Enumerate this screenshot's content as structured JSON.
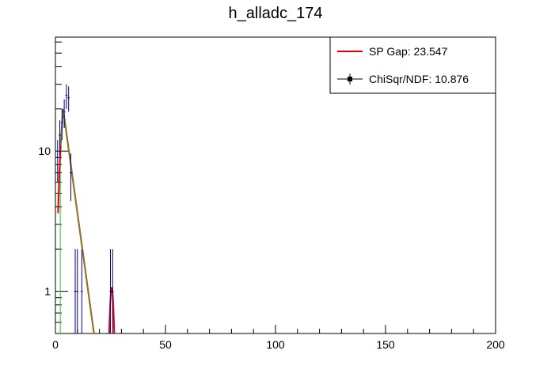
{
  "chart_data": {
    "type": "scatter",
    "title": "h_alladc_174",
    "xlabel": "",
    "ylabel": "",
    "xlim": [
      0,
      200
    ],
    "ylim": [
      0.5,
      65
    ],
    "yscale": "log",
    "x_ticks": [
      0,
      50,
      100,
      150,
      200
    ],
    "y_ticks": [
      1,
      10
    ],
    "grid": false,
    "legend_position": "top-right",
    "legend": [
      {
        "label": "SP Gap: 23.547",
        "style": "line",
        "color": "#e00000"
      },
      {
        "label": "ChiSqr/NDF: 10.876",
        "style": "marker-line",
        "color": "#000000"
      }
    ],
    "histogram": {
      "name": "data",
      "color": "#00008b",
      "points": [
        {
          "x": 1,
          "y": 9,
          "yerr": 3
        },
        {
          "x": 2,
          "y": 13,
          "yerr": 3.6
        },
        {
          "x": 3,
          "y": 16,
          "yerr": 4
        },
        {
          "x": 4,
          "y": 19,
          "yerr": 4.4
        },
        {
          "x": 5,
          "y": 25,
          "yerr": 5
        },
        {
          "x": 6,
          "y": 24,
          "yerr": 4.9
        },
        {
          "x": 7,
          "y": 7,
          "yerr": 2.6
        },
        {
          "x": 8,
          "y": 0,
          "yerr": 0
        },
        {
          "x": 9,
          "y": 1,
          "yerr": 1
        },
        {
          "x": 10,
          "y": 1,
          "yerr": 1
        },
        {
          "x": 11,
          "y": 0,
          "yerr": 0
        },
        {
          "x": 12,
          "y": 1,
          "yerr": 1
        },
        {
          "x": 25,
          "y": 1,
          "yerr": 1
        },
        {
          "x": 26,
          "y": 1,
          "yerr": 1
        }
      ]
    },
    "fit_total": {
      "color": "#e00000",
      "pedestal_amp": 20,
      "pedestal_peak": 3.5,
      "decay": 3.8,
      "spe_amp": 1.0,
      "spe_mean": 25.6,
      "spe_sigma": 0.9
    },
    "fit_pedestal": {
      "color": "#6b8e23"
    },
    "fit_rise": {
      "color": "#22cc22"
    }
  }
}
